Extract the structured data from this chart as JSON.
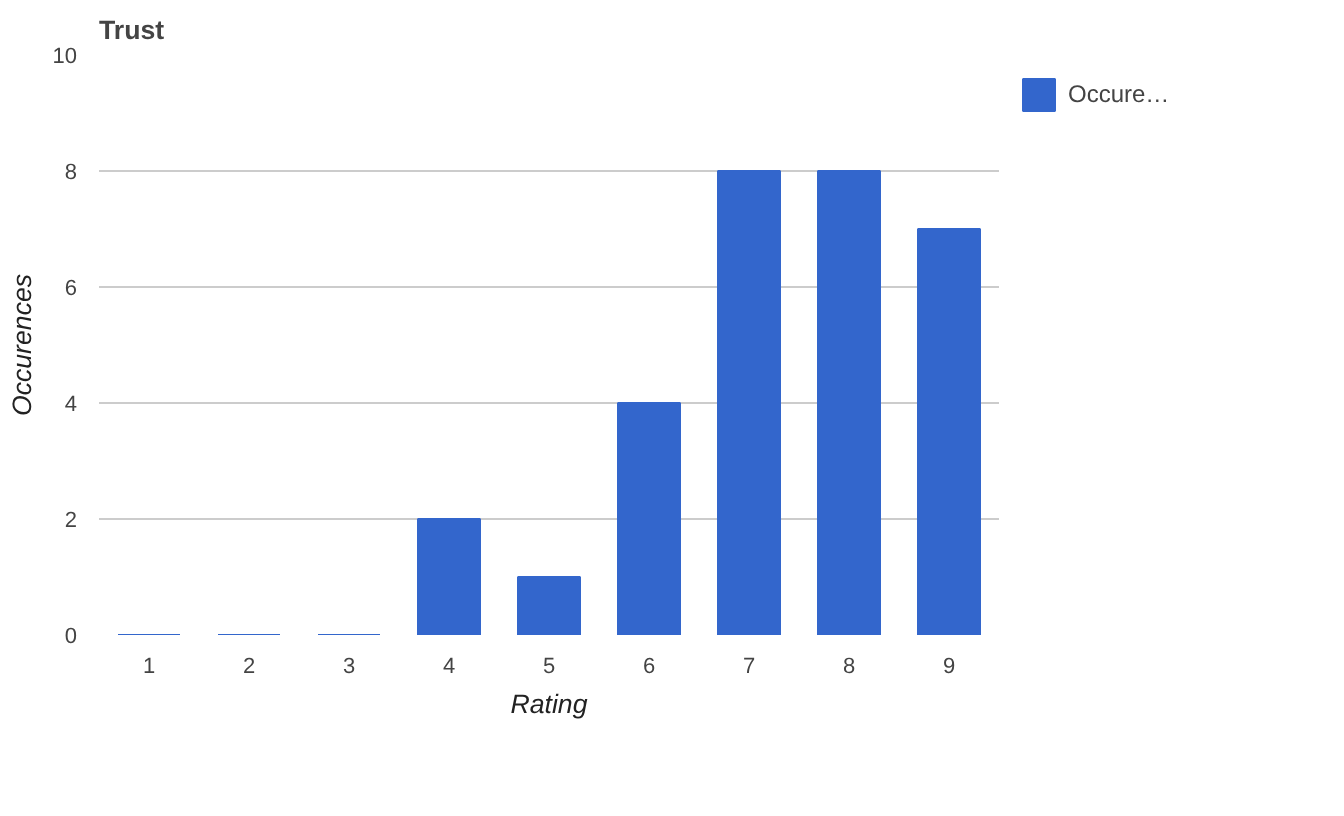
{
  "chart_data": {
    "type": "bar",
    "title": "Trust",
    "xlabel": "Rating",
    "ylabel": "Occurences",
    "categories": [
      "1",
      "2",
      "3",
      "4",
      "5",
      "6",
      "7",
      "8",
      "9"
    ],
    "series": [
      {
        "name": "Occure…",
        "color": "#3366cc",
        "values": [
          0,
          0,
          0,
          2,
          1,
          4,
          8,
          8,
          7
        ]
      }
    ],
    "ylim": [
      0,
      10
    ],
    "yticks": [
      0,
      2,
      4,
      6,
      8,
      10
    ],
    "grid": "y",
    "legend": "top right"
  }
}
